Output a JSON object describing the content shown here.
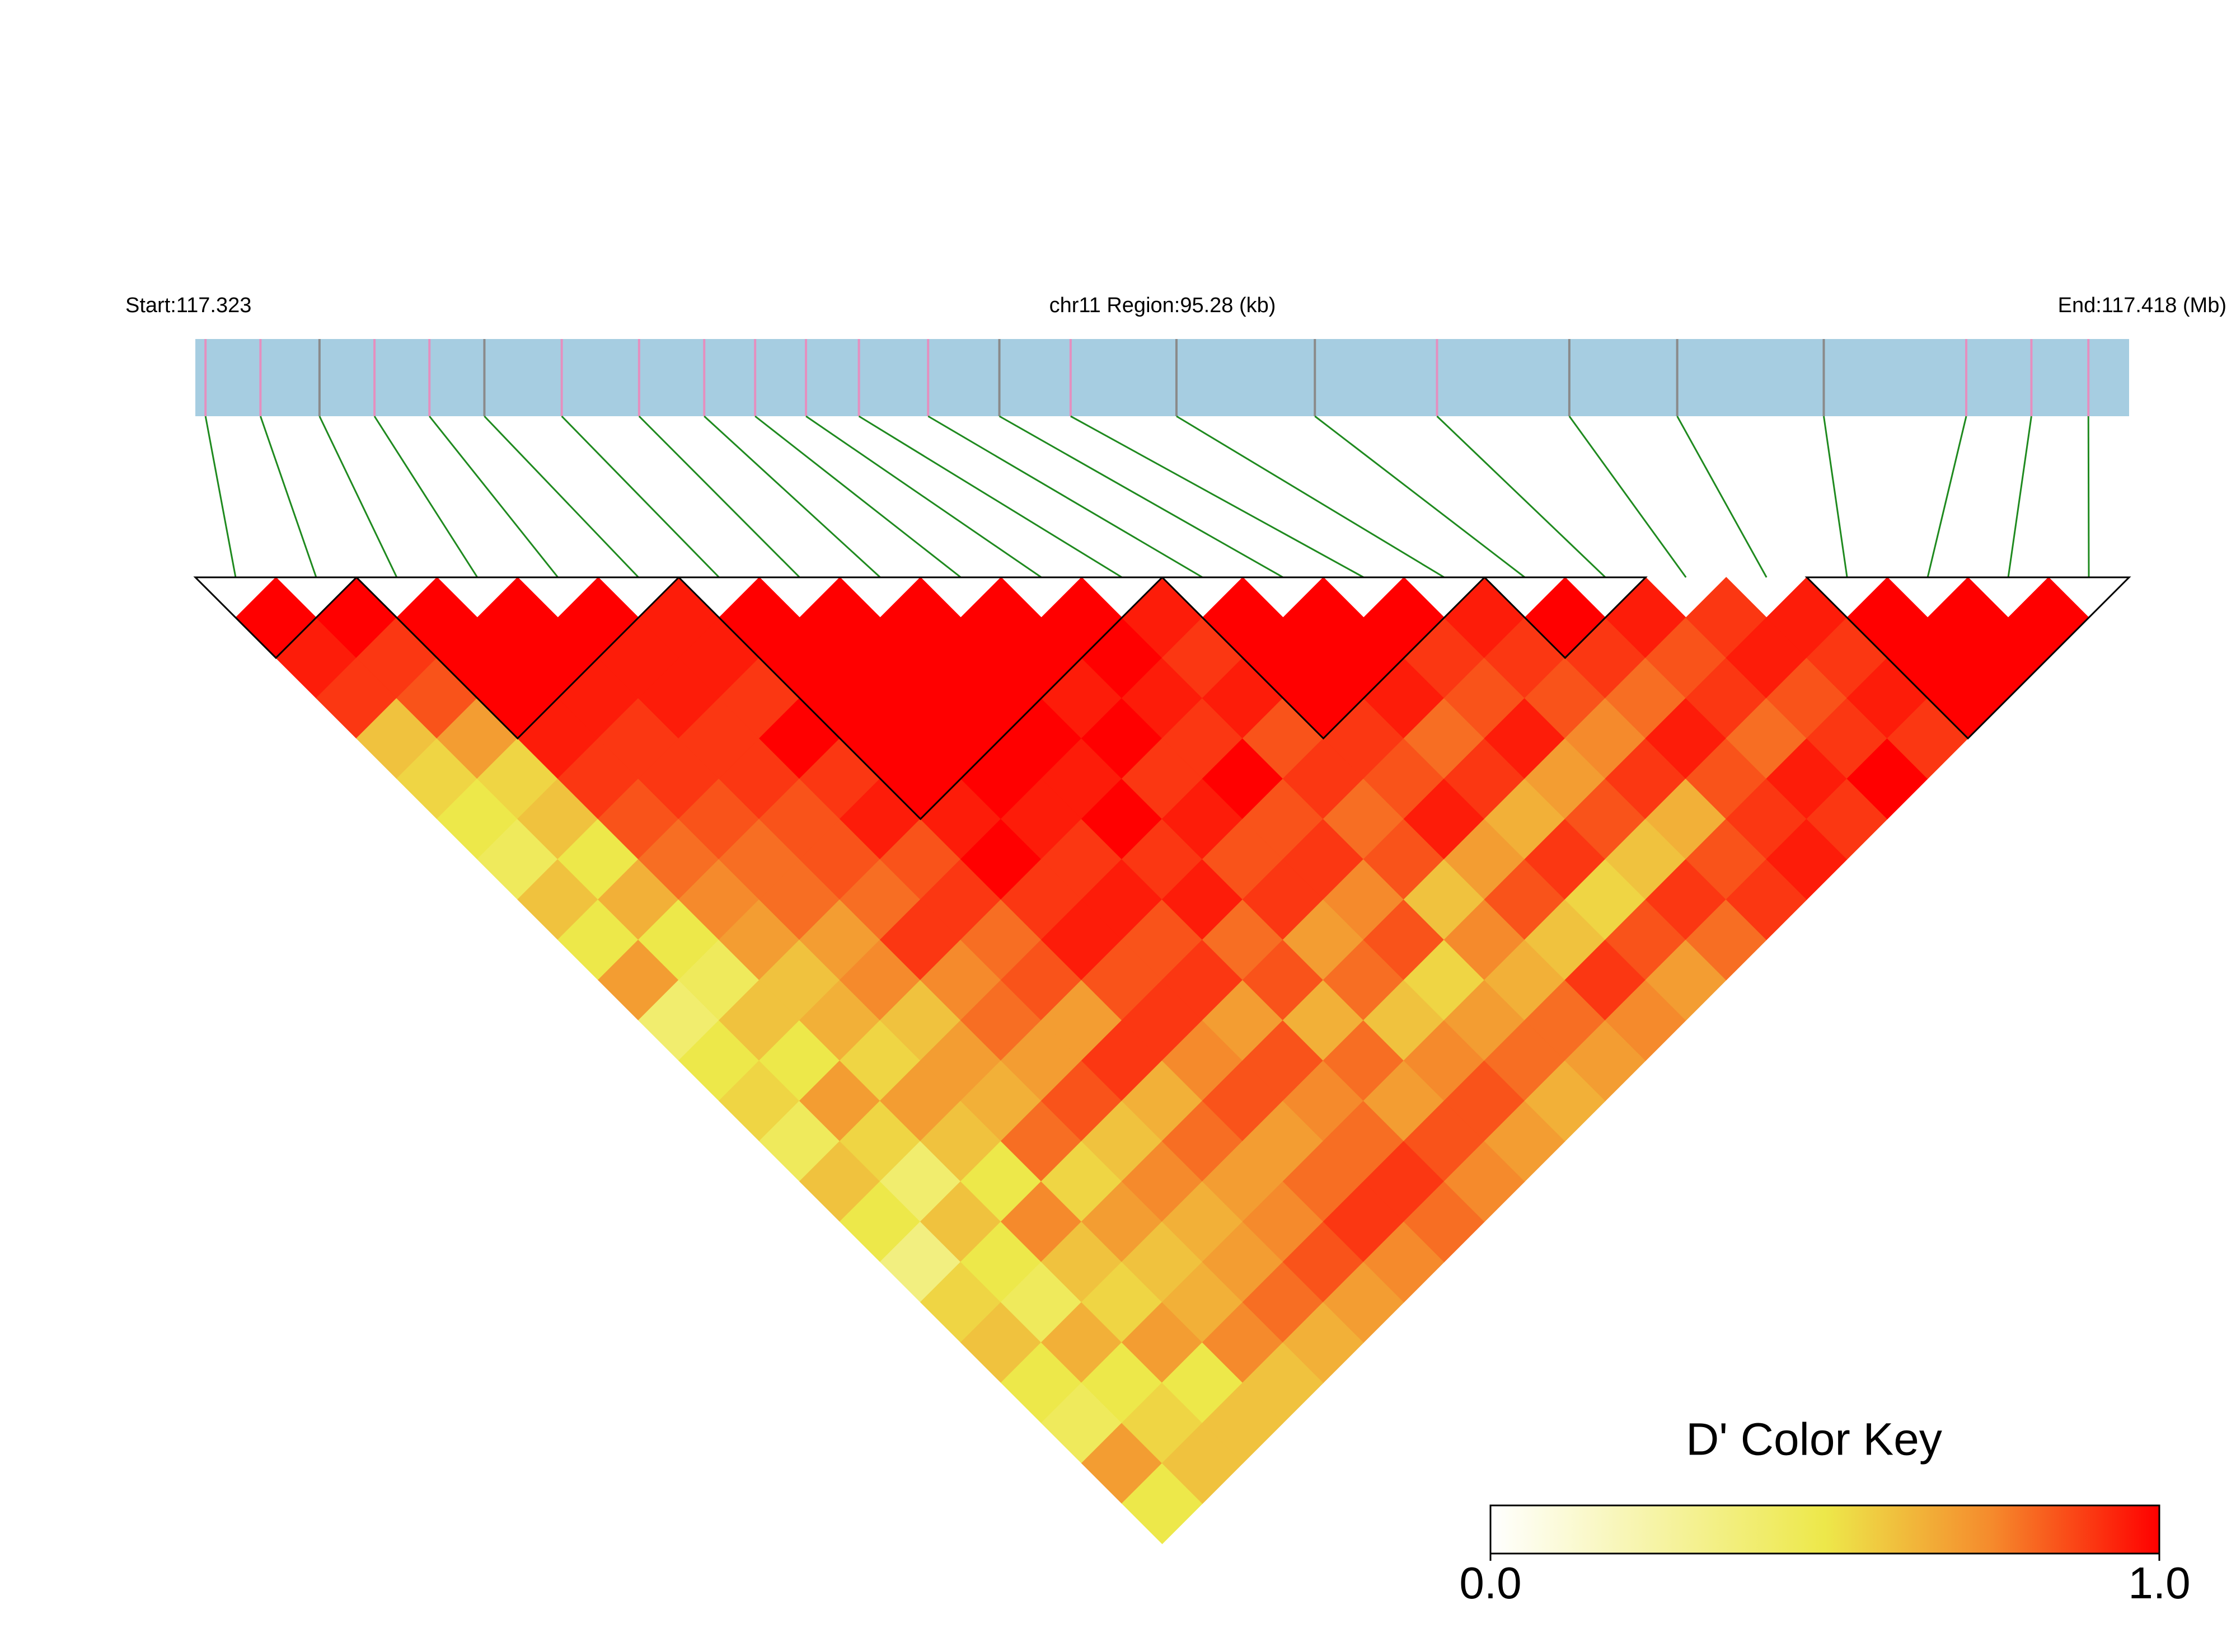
{
  "chart_data": {
    "type": "ld-heatmap",
    "start_label": "Start:117.323",
    "region_label": "chr11 Region:95.28 (kb)",
    "end_label": "End:117.418 (Mb)",
    "xlim": [
      117.323,
      117.418
    ],
    "positions": [
      117.3235,
      117.3262,
      117.3291,
      117.3318,
      117.3345,
      117.3372,
      117.341,
      117.3448,
      117.348,
      117.3505,
      117.353,
      117.3556,
      117.359,
      117.3625,
      117.366,
      117.3712,
      117.378,
      117.384,
      117.3905,
      117.3958,
      117.403,
      117.41,
      117.4132,
      117.416
    ],
    "marker_colors": [
      "#e58fbf",
      "#e58fbf",
      "#8a8a8a",
      "#e58fbf",
      "#e58fbf",
      "#8a8a8a",
      "#e58fbf",
      "#e58fbf",
      "#e58fbf",
      "#e58fbf",
      "#e58fbf",
      "#e58fbf",
      "#e58fbf",
      "#8a8a8a",
      "#e58fbf",
      "#8a8a8a",
      "#8a8a8a",
      "#e58fbf",
      "#8a8a8a",
      "#8a8a8a",
      "#8a8a8a",
      "#e58fbf",
      "#e58fbf",
      "#e58fbf"
    ],
    "bar_color": "#a6cde1",
    "connector_color": "#1f8a1f",
    "dprime": [
      [
        1,
        0.95,
        0.9,
        0.6,
        0.55,
        0.5,
        0.45,
        0.6,
        0.5,
        0.7,
        0.4,
        0.5,
        0.55,
        0.45,
        0.6,
        0.5,
        0.35,
        0.55,
        0.6,
        0.5,
        0.45,
        0.7,
        0.5
      ],
      [
        1,
        0.9,
        0.85,
        0.7,
        0.55,
        0.6,
        0.5,
        0.65,
        0.5,
        0.45,
        0.6,
        0.5,
        0.7,
        0.55,
        0.4,
        0.6,
        0.5,
        0.45,
        0.65,
        0.5,
        0.55,
        0.6
      ],
      [
        1,
        1,
        1,
        0.95,
        0.9,
        0.85,
        0.8,
        0.75,
        0.7,
        0.6,
        0.65,
        0.55,
        0.7,
        0.6,
        0.5,
        0.75,
        0.6,
        0.55,
        0.7,
        0.5,
        0.6
      ],
      [
        1,
        1,
        0.95,
        0.9,
        0.9,
        0.85,
        0.8,
        0.8,
        0.7,
        0.75,
        0.6,
        0.7,
        0.65,
        0.8,
        0.55,
        0.7,
        0.6,
        0.65,
        0.75,
        0.6
      ],
      [
        1,
        0.95,
        0.95,
        0.9,
        0.9,
        0.85,
        0.85,
        0.8,
        0.9,
        0.75,
        0.8,
        0.7,
        0.85,
        0.6,
        0.75,
        0.65,
        0.7,
        0.8,
        0.65
      ],
      [
        0.95,
        0.95,
        0.9,
        1,
        0.9,
        0.95,
        0.85,
        0.9,
        0.8,
        0.85,
        0.7,
        0.9,
        0.65,
        0.8,
        0.7,
        0.75,
        0.85,
        0.7
      ],
      [
        1,
        1,
        1,
        1,
        1,
        0.95,
        1,
        0.9,
        0.95,
        0.85,
        0.9,
        0.75,
        0.85,
        0.7,
        0.8,
        0.9,
        0.75
      ],
      [
        1,
        1,
        1,
        1,
        1,
        0.95,
        0.9,
        0.95,
        0.85,
        0.9,
        0.7,
        0.85,
        0.75,
        0.8,
        0.9,
        0.8
      ],
      [
        1,
        1,
        1,
        1,
        0.95,
        1,
        0.9,
        0.95,
        0.8,
        0.85,
        0.65,
        0.8,
        0.7,
        0.85,
        0.75
      ],
      [
        1,
        1,
        0.95,
        1,
        0.9,
        0.95,
        0.85,
        0.9,
        0.7,
        0.8,
        0.6,
        0.75,
        0.85,
        0.7
      ],
      [
        1,
        1,
        0.95,
        0.9,
        1,
        0.85,
        0.9,
        0.75,
        0.85,
        0.55,
        0.7,
        0.8,
        0.65
      ],
      [
        0.95,
        0.9,
        0.95,
        0.85,
        0.9,
        0.8,
        0.85,
        0.6,
        0.75,
        0.65,
        0.8,
        0.7
      ],
      [
        1,
        1,
        1,
        0.9,
        0.85,
        0.95,
        0.7,
        0.85,
        0.6,
        0.9,
        0.75
      ],
      [
        1,
        1,
        0.95,
        0.8,
        0.9,
        0.65,
        0.9,
        0.55,
        0.85,
        0.7
      ],
      [
        1,
        0.9,
        0.85,
        0.95,
        0.7,
        0.85,
        0.6,
        0.9,
        0.8
      ],
      [
        0.95,
        0.9,
        0.85,
        0.75,
        0.9,
        0.65,
        0.85,
        0.9
      ],
      [
        1,
        0.9,
        0.8,
        0.95,
        0.85,
        0.9,
        0.95
      ],
      [
        0.95,
        0.85,
        0.9,
        0.8,
        0.95,
        0.9
      ],
      [
        0.9,
        0.95,
        0.85,
        0.9,
        1
      ],
      [
        0.95,
        0.9,
        0.95,
        0.9
      ],
      [
        1,
        1,
        1
      ],
      [
        1,
        1
      ],
      [
        1
      ]
    ],
    "blocks": [
      [
        0,
        1
      ],
      [
        2,
        5
      ],
      [
        6,
        11
      ],
      [
        12,
        15
      ],
      [
        16,
        17
      ],
      [
        20,
        23
      ]
    ],
    "colorbar": {
      "title": "D' Color Key",
      "ticks": [
        {
          "value": 0,
          "label": "0.0"
        },
        {
          "value": 1,
          "label": "1.0"
        }
      ]
    }
  }
}
